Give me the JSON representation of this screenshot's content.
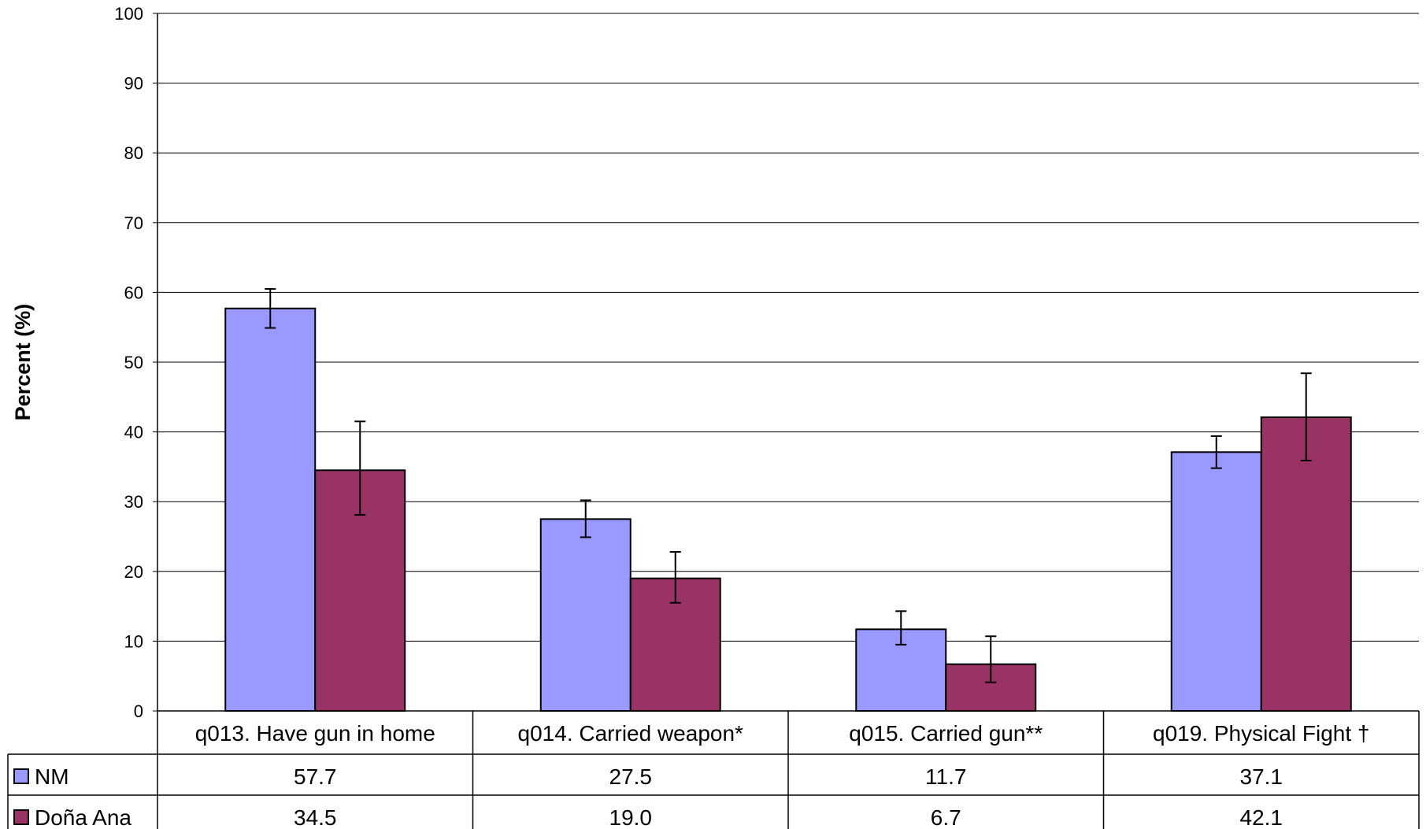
{
  "chart_data": {
    "type": "bar",
    "title": "",
    "xlabel": "",
    "ylabel": "Percent (%)",
    "ylim": [
      0,
      100
    ],
    "yticks": [
      "0",
      "10",
      "20",
      "30",
      "40",
      "50",
      "60",
      "70",
      "80",
      "90",
      "100"
    ],
    "grid": true,
    "categories": [
      "q013. Have gun in home",
      "q014. Carried weapon*",
      "q015. Carried gun**",
      "q019. Physical Fight †"
    ],
    "series": [
      {
        "name": "NM",
        "color": "#9999ff",
        "values": [
          57.7,
          27.5,
          11.7,
          37.1
        ],
        "value_labels": [
          "57.7",
          "27.5",
          "11.7",
          "37.1"
        ],
        "error_low": [
          54.9,
          24.9,
          9.5,
          34.8
        ],
        "error_high": [
          60.5,
          30.2,
          14.3,
          39.4
        ]
      },
      {
        "name": "Doña Ana",
        "color": "#993366",
        "values": [
          34.5,
          19.0,
          6.7,
          42.1
        ],
        "value_labels": [
          "34.5",
          "19.0",
          "6.7",
          "42.1"
        ],
        "error_low": [
          28.1,
          15.5,
          4.1,
          35.9
        ],
        "error_high": [
          41.5,
          22.8,
          10.7,
          48.4
        ]
      }
    ],
    "legend": "data-table"
  }
}
